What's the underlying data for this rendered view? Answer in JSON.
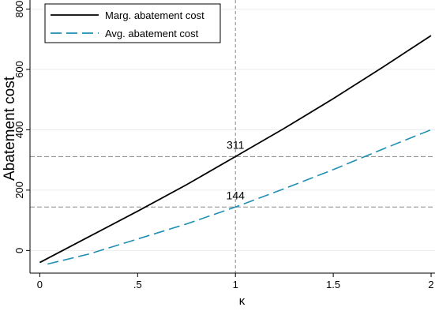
{
  "chart_data": {
    "type": "line",
    "xlabel": "κ",
    "ylabel": "Abatement cost",
    "xlim": [
      -0.05,
      2.02
    ],
    "ylim": [
      -75,
      830
    ],
    "x_ticks": [
      0,
      0.5,
      1,
      1.5,
      2
    ],
    "x_tick_labels": [
      "0",
      ".5",
      "1",
      "1.5",
      "2"
    ],
    "y_ticks": [
      0,
      200,
      400,
      600,
      800
    ],
    "y_tick_labels": [
      "0",
      "200",
      "400",
      "600",
      "800"
    ],
    "grid": true,
    "legend_position": "top-left",
    "series": [
      {
        "name": "Marg. abatement cost",
        "color": "#000000",
        "dash": "solid",
        "x": [
          0,
          0.25,
          0.5,
          0.75,
          1,
          1.25,
          1.5,
          1.75,
          2
        ],
        "y": [
          -40,
          45,
          130,
          218,
          311,
          405,
          503,
          606,
          712
        ]
      },
      {
        "name": "Avg. abatement cost",
        "color": "#1f8fb3",
        "dash": "long-dash",
        "x": [
          0.04,
          0.25,
          0.5,
          0.75,
          1,
          1.25,
          1.5,
          1.75,
          2
        ],
        "y": [
          -45,
          -12,
          38,
          88,
          144,
          205,
          268,
          335,
          400
        ]
      }
    ],
    "reference_lines": {
      "vertical_x": [
        1
      ],
      "horizontal_y": [
        311,
        144
      ]
    },
    "annotations": [
      {
        "text": "311",
        "x": 1,
        "y": 311
      },
      {
        "text": "144",
        "x": 1,
        "y": 144
      }
    ]
  }
}
